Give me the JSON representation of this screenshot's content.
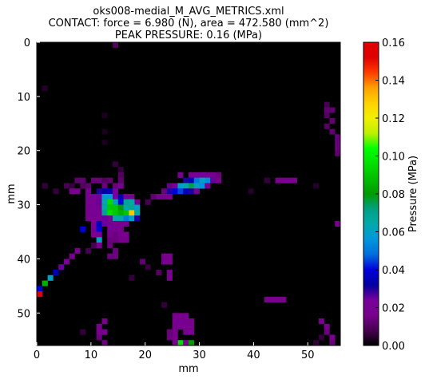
{
  "chart_data": {
    "type": "heatmap",
    "title_lines": [
      "oks008-medial_M_AVG_METRICS.xml",
      "CONTACT: force = 6.980 (N), area = 472.580 (mm^2)",
      "PEAK PRESSURE: 0.16 (MPa)"
    ],
    "xlabel": "mm",
    "ylabel": "mm",
    "xlim": [
      0,
      56
    ],
    "ylim": [
      56,
      0
    ],
    "x_ticks": [
      0,
      10,
      20,
      30,
      40,
      50
    ],
    "y_ticks": [
      0,
      10,
      20,
      30,
      40,
      50
    ],
    "colorbar": {
      "label": "Pressure (MPa)",
      "range": [
        0.0,
        0.16
      ],
      "ticks": [
        "0.00",
        "0.02",
        "0.04",
        "0.06",
        "0.08",
        "0.10",
        "0.12",
        "0.14",
        "0.16"
      ],
      "colormap": "nipy_spectral"
    },
    "background_color": "#000000",
    "cells": [
      {
        "x": 14,
        "y": 0,
        "v": 0.01
      },
      {
        "x": 1,
        "y": 8,
        "v": 0.004
      },
      {
        "x": 53,
        "y": 11,
        "v": 0.008
      },
      {
        "x": 53,
        "y": 12,
        "v": 0.012
      },
      {
        "x": 54,
        "y": 12,
        "v": 0.012
      },
      {
        "x": 53,
        "y": 13,
        "v": 0.01
      },
      {
        "x": 54,
        "y": 14,
        "v": 0.012
      },
      {
        "x": 53,
        "y": 15,
        "v": 0.01
      },
      {
        "x": 54,
        "y": 16,
        "v": 0.012
      },
      {
        "x": 55,
        "y": 17,
        "v": 0.014
      },
      {
        "x": 55,
        "y": 18,
        "v": 0.014
      },
      {
        "x": 55,
        "y": 19,
        "v": 0.014
      },
      {
        "x": 55,
        "y": 20,
        "v": 0.012
      },
      {
        "x": 12,
        "y": 13,
        "v": 0.003
      },
      {
        "x": 12,
        "y": 16,
        "v": 0.003
      },
      {
        "x": 12,
        "y": 18,
        "v": 0.003
      },
      {
        "x": 14,
        "y": 22,
        "v": 0.006
      },
      {
        "x": 15,
        "y": 23,
        "v": 0.006
      },
      {
        "x": 15,
        "y": 24,
        "v": 0.01
      },
      {
        "x": 7,
        "y": 25,
        "v": 0.012
      },
      {
        "x": 8,
        "y": 25,
        "v": 0.012
      },
      {
        "x": 10,
        "y": 25,
        "v": 0.014
      },
      {
        "x": 11,
        "y": 25,
        "v": 0.014
      },
      {
        "x": 12,
        "y": 25,
        "v": 0.01
      },
      {
        "x": 13,
        "y": 25,
        "v": 0.012
      },
      {
        "x": 15,
        "y": 25,
        "v": 0.012
      },
      {
        "x": 1,
        "y": 26,
        "v": 0.006
      },
      {
        "x": 5,
        "y": 26,
        "v": 0.008
      },
      {
        "x": 6,
        "y": 26,
        "v": 0.006
      },
      {
        "x": 8,
        "y": 26,
        "v": 0.01
      },
      {
        "x": 9,
        "y": 26,
        "v": 0.012
      },
      {
        "x": 12,
        "y": 26,
        "v": 0.014
      },
      {
        "x": 14,
        "y": 26,
        "v": 0.014
      },
      {
        "x": 15,
        "y": 26,
        "v": 0.016
      },
      {
        "x": 3,
        "y": 27,
        "v": 0.006
      },
      {
        "x": 6,
        "y": 27,
        "v": 0.016
      },
      {
        "x": 7,
        "y": 27,
        "v": 0.016
      },
      {
        "x": 9,
        "y": 27,
        "v": 0.018
      },
      {
        "x": 11,
        "y": 27,
        "v": 0.03
      },
      {
        "x": 12,
        "y": 27,
        "v": 0.032
      },
      {
        "x": 13,
        "y": 27,
        "v": 0.034
      },
      {
        "x": 14,
        "y": 27,
        "v": 0.022
      },
      {
        "x": 9,
        "y": 28,
        "v": 0.02
      },
      {
        "x": 10,
        "y": 28,
        "v": 0.022
      },
      {
        "x": 11,
        "y": 28,
        "v": 0.018
      },
      {
        "x": 12,
        "y": 28,
        "v": 0.058
      },
      {
        "x": 13,
        "y": 28,
        "v": 0.058
      },
      {
        "x": 14,
        "y": 28,
        "v": 0.022
      },
      {
        "x": 15,
        "y": 28,
        "v": 0.035
      },
      {
        "x": 16,
        "y": 28,
        "v": 0.022
      },
      {
        "x": 17,
        "y": 28,
        "v": 0.016
      },
      {
        "x": 9,
        "y": 29,
        "v": 0.016
      },
      {
        "x": 10,
        "y": 29,
        "v": 0.02
      },
      {
        "x": 11,
        "y": 29,
        "v": 0.025
      },
      {
        "x": 12,
        "y": 29,
        "v": 0.062
      },
      {
        "x": 13,
        "y": 29,
        "v": 0.095
      },
      {
        "x": 14,
        "y": 29,
        "v": 0.06
      },
      {
        "x": 15,
        "y": 29,
        "v": 0.04
      },
      {
        "x": 16,
        "y": 29,
        "v": 0.07
      },
      {
        "x": 17,
        "y": 29,
        "v": 0.065
      },
      {
        "x": 18,
        "y": 29,
        "v": 0.02
      },
      {
        "x": 9,
        "y": 30,
        "v": 0.018
      },
      {
        "x": 10,
        "y": 30,
        "v": 0.02
      },
      {
        "x": 11,
        "y": 30,
        "v": 0.018
      },
      {
        "x": 12,
        "y": 30,
        "v": 0.065
      },
      {
        "x": 13,
        "y": 30,
        "v": 0.09
      },
      {
        "x": 14,
        "y": 30,
        "v": 0.09
      },
      {
        "x": 15,
        "y": 30,
        "v": 0.08
      },
      {
        "x": 16,
        "y": 30,
        "v": 0.065
      },
      {
        "x": 17,
        "y": 30,
        "v": 0.068
      },
      {
        "x": 18,
        "y": 30,
        "v": 0.06
      },
      {
        "x": 9,
        "y": 31,
        "v": 0.018
      },
      {
        "x": 10,
        "y": 31,
        "v": 0.02
      },
      {
        "x": 11,
        "y": 31,
        "v": 0.022
      },
      {
        "x": 12,
        "y": 31,
        "v": 0.07
      },
      {
        "x": 13,
        "y": 31,
        "v": 0.095
      },
      {
        "x": 14,
        "y": 31,
        "v": 0.09
      },
      {
        "x": 15,
        "y": 31,
        "v": 0.085
      },
      {
        "x": 16,
        "y": 31,
        "v": 0.09
      },
      {
        "x": 17,
        "y": 31,
        "v": 0.13
      },
      {
        "x": 18,
        "y": 31,
        "v": 0.065
      },
      {
        "x": 9,
        "y": 32,
        "v": 0.016
      },
      {
        "x": 10,
        "y": 32,
        "v": 0.018
      },
      {
        "x": 11,
        "y": 32,
        "v": 0.02
      },
      {
        "x": 12,
        "y": 32,
        "v": 0.025
      },
      {
        "x": 13,
        "y": 32,
        "v": 0.02
      },
      {
        "x": 14,
        "y": 32,
        "v": 0.065
      },
      {
        "x": 15,
        "y": 32,
        "v": 0.065
      },
      {
        "x": 16,
        "y": 32,
        "v": 0.05
      },
      {
        "x": 17,
        "y": 32,
        "v": 0.06
      },
      {
        "x": 18,
        "y": 32,
        "v": 0.03
      },
      {
        "x": 10,
        "y": 33,
        "v": 0.02
      },
      {
        "x": 11,
        "y": 33,
        "v": 0.035
      },
      {
        "x": 12,
        "y": 33,
        "v": 0.025
      },
      {
        "x": 13,
        "y": 33,
        "v": 0.018
      },
      {
        "x": 14,
        "y": 33,
        "v": 0.016
      },
      {
        "x": 15,
        "y": 33,
        "v": 0.018
      },
      {
        "x": 16,
        "y": 33,
        "v": 0.016
      },
      {
        "x": 8,
        "y": 34,
        "v": 0.04
      },
      {
        "x": 10,
        "y": 34,
        "v": 0.016
      },
      {
        "x": 11,
        "y": 34,
        "v": 0.04
      },
      {
        "x": 13,
        "y": 34,
        "v": 0.018
      },
      {
        "x": 14,
        "y": 34,
        "v": 0.02
      },
      {
        "x": 15,
        "y": 34,
        "v": 0.016
      },
      {
        "x": 10,
        "y": 35,
        "v": 0.018
      },
      {
        "x": 11,
        "y": 35,
        "v": 0.02
      },
      {
        "x": 13,
        "y": 35,
        "v": 0.016
      },
      {
        "x": 14,
        "y": 35,
        "v": 0.014
      },
      {
        "x": 15,
        "y": 35,
        "v": 0.018
      },
      {
        "x": 16,
        "y": 35,
        "v": 0.016
      },
      {
        "x": 11,
        "y": 36,
        "v": 0.06
      },
      {
        "x": 13,
        "y": 36,
        "v": 0.014
      },
      {
        "x": 14,
        "y": 36,
        "v": 0.014
      },
      {
        "x": 15,
        "y": 36,
        "v": 0.016
      },
      {
        "x": 16,
        "y": 36,
        "v": 0.016
      },
      {
        "x": 11,
        "y": 37,
        "v": 0.016
      },
      {
        "x": 13,
        "y": 37,
        "v": 0.014
      },
      {
        "x": 17,
        "y": 29,
        "v": 0.065
      },
      {
        "x": 26,
        "y": 24,
        "v": 0.018
      },
      {
        "x": 28,
        "y": 24,
        "v": 0.018
      },
      {
        "x": 29,
        "y": 24,
        "v": 0.022
      },
      {
        "x": 30,
        "y": 24,
        "v": 0.024
      },
      {
        "x": 31,
        "y": 24,
        "v": 0.02
      },
      {
        "x": 32,
        "y": 24,
        "v": 0.018
      },
      {
        "x": 33,
        "y": 24,
        "v": 0.014
      },
      {
        "x": 27,
        "y": 25,
        "v": 0.03
      },
      {
        "x": 28,
        "y": 25,
        "v": 0.035
      },
      {
        "x": 29,
        "y": 25,
        "v": 0.05
      },
      {
        "x": 30,
        "y": 25,
        "v": 0.06
      },
      {
        "x": 31,
        "y": 25,
        "v": 0.055
      },
      {
        "x": 32,
        "y": 25,
        "v": 0.025
      },
      {
        "x": 33,
        "y": 25,
        "v": 0.016
      },
      {
        "x": 24,
        "y": 26,
        "v": 0.014
      },
      {
        "x": 25,
        "y": 26,
        "v": 0.02
      },
      {
        "x": 26,
        "y": 26,
        "v": 0.06
      },
      {
        "x": 27,
        "y": 26,
        "v": 0.065
      },
      {
        "x": 28,
        "y": 26,
        "v": 0.075
      },
      {
        "x": 29,
        "y": 26,
        "v": 0.06
      },
      {
        "x": 30,
        "y": 26,
        "v": 0.055
      },
      {
        "x": 31,
        "y": 26,
        "v": 0.018
      },
      {
        "x": 23,
        "y": 27,
        "v": 0.014
      },
      {
        "x": 24,
        "y": 27,
        "v": 0.03
      },
      {
        "x": 25,
        "y": 27,
        "v": 0.04
      },
      {
        "x": 26,
        "y": 27,
        "v": 0.045
      },
      {
        "x": 27,
        "y": 27,
        "v": 0.035
      },
      {
        "x": 28,
        "y": 27,
        "v": 0.03
      },
      {
        "x": 29,
        "y": 27,
        "v": 0.018
      },
      {
        "x": 22,
        "y": 28,
        "v": 0.016
      },
      {
        "x": 23,
        "y": 28,
        "v": 0.018
      },
      {
        "x": 24,
        "y": 28,
        "v": 0.016
      },
      {
        "x": 21,
        "y": 28,
        "v": 0.012
      },
      {
        "x": 20,
        "y": 29,
        "v": 0.008
      },
      {
        "x": 44,
        "y": 25,
        "v": 0.016
      },
      {
        "x": 45,
        "y": 25,
        "v": 0.016
      },
      {
        "x": 46,
        "y": 25,
        "v": 0.018
      },
      {
        "x": 47,
        "y": 25,
        "v": 0.016
      },
      {
        "x": 42,
        "y": 25,
        "v": 0.006
      },
      {
        "x": 39,
        "y": 27,
        "v": 0.004
      },
      {
        "x": 51,
        "y": 26,
        "v": 0.004
      },
      {
        "x": 55,
        "y": 33,
        "v": 0.016
      },
      {
        "x": 7,
        "y": 38,
        "v": 0.016
      },
      {
        "x": 6,
        "y": 39,
        "v": 0.016
      },
      {
        "x": 5,
        "y": 40,
        "v": 0.02
      },
      {
        "x": 4,
        "y": 41,
        "v": 0.025
      },
      {
        "x": 3,
        "y": 42,
        "v": 0.035
      },
      {
        "x": 2,
        "y": 43,
        "v": 0.06
      },
      {
        "x": 1,
        "y": 44,
        "v": 0.085
      },
      {
        "x": 0,
        "y": 45,
        "v": 0.04
      },
      {
        "x": 0,
        "y": 46,
        "v": 0.16
      },
      {
        "x": 9,
        "y": 38,
        "v": 0.008
      },
      {
        "x": 10,
        "y": 37,
        "v": 0.008
      },
      {
        "x": 14,
        "y": 38,
        "v": 0.014
      },
      {
        "x": 13,
        "y": 39,
        "v": 0.014
      },
      {
        "x": 14,
        "y": 39,
        "v": 0.014
      },
      {
        "x": 19,
        "y": 40,
        "v": 0.012
      },
      {
        "x": 23,
        "y": 39,
        "v": 0.016
      },
      {
        "x": 24,
        "y": 39,
        "v": 0.016
      },
      {
        "x": 23,
        "y": 40,
        "v": 0.018
      },
      {
        "x": 24,
        "y": 40,
        "v": 0.016
      },
      {
        "x": 22,
        "y": 42,
        "v": 0.01
      },
      {
        "x": 24,
        "y": 42,
        "v": 0.016
      },
      {
        "x": 24,
        "y": 43,
        "v": 0.016
      },
      {
        "x": 17,
        "y": 43,
        "v": 0.006
      },
      {
        "x": 20,
        "y": 41,
        "v": 0.006
      },
      {
        "x": 42,
        "y": 47,
        "v": 0.016
      },
      {
        "x": 43,
        "y": 47,
        "v": 0.016
      },
      {
        "x": 44,
        "y": 47,
        "v": 0.016
      },
      {
        "x": 45,
        "y": 47,
        "v": 0.016
      },
      {
        "x": 25,
        "y": 50,
        "v": 0.016
      },
      {
        "x": 26,
        "y": 50,
        "v": 0.016
      },
      {
        "x": 27,
        "y": 50,
        "v": 0.018
      },
      {
        "x": 25,
        "y": 51,
        "v": 0.018
      },
      {
        "x": 26,
        "y": 51,
        "v": 0.02
      },
      {
        "x": 27,
        "y": 51,
        "v": 0.018
      },
      {
        "x": 28,
        "y": 51,
        "v": 0.016
      },
      {
        "x": 25,
        "y": 52,
        "v": 0.016
      },
      {
        "x": 26,
        "y": 52,
        "v": 0.018
      },
      {
        "x": 27,
        "y": 52,
        "v": 0.016
      },
      {
        "x": 28,
        "y": 52,
        "v": 0.016
      },
      {
        "x": 24,
        "y": 53,
        "v": 0.014
      },
      {
        "x": 25,
        "y": 53,
        "v": 0.016
      },
      {
        "x": 27,
        "y": 53,
        "v": 0.016
      },
      {
        "x": 28,
        "y": 53,
        "v": 0.02
      },
      {
        "x": 24,
        "y": 54,
        "v": 0.014
      },
      {
        "x": 25,
        "y": 54,
        "v": 0.016
      },
      {
        "x": 26,
        "y": 55,
        "v": 0.095
      },
      {
        "x": 27,
        "y": 55,
        "v": 0.018
      },
      {
        "x": 28,
        "y": 55,
        "v": 0.08
      },
      {
        "x": 25,
        "y": 55,
        "v": 0.016
      },
      {
        "x": 12,
        "y": 51,
        "v": 0.016
      },
      {
        "x": 11,
        "y": 52,
        "v": 0.016
      },
      {
        "x": 11,
        "y": 53,
        "v": 0.016
      },
      {
        "x": 12,
        "y": 53,
        "v": 0.016
      },
      {
        "x": 11,
        "y": 54,
        "v": 0.014
      },
      {
        "x": 12,
        "y": 55,
        "v": 0.014
      },
      {
        "x": 8,
        "y": 53,
        "v": 0.006
      },
      {
        "x": 23,
        "y": 48,
        "v": 0.006
      },
      {
        "x": 52,
        "y": 51,
        "v": 0.016
      },
      {
        "x": 53,
        "y": 52,
        "v": 0.016
      },
      {
        "x": 53,
        "y": 53,
        "v": 0.014
      },
      {
        "x": 54,
        "y": 54,
        "v": 0.016
      },
      {
        "x": 54,
        "y": 55,
        "v": 0.014
      },
      {
        "x": 52,
        "y": 54,
        "v": 0.006
      },
      {
        "x": 51,
        "y": 55,
        "v": 0.006
      }
    ]
  }
}
